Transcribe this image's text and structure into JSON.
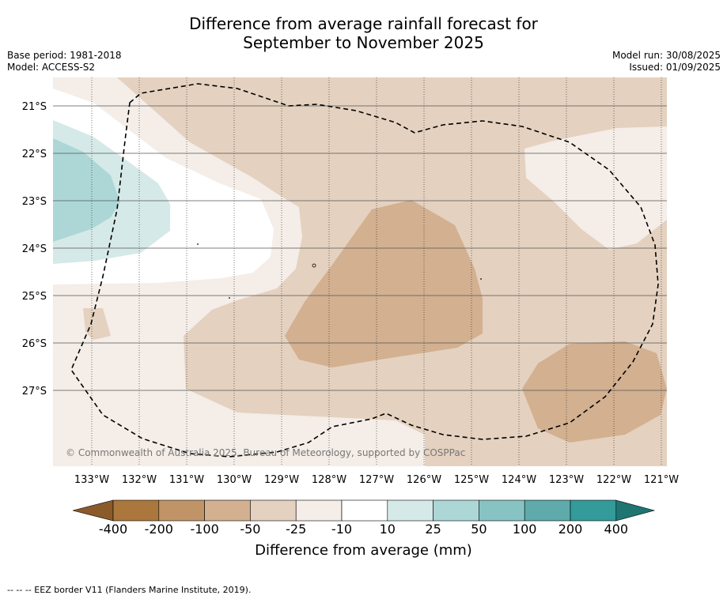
{
  "title": {
    "line1": "Difference from average rainfall forecast for",
    "line2": "September to November 2025"
  },
  "meta": {
    "base_period": "Base period: 1981-2018",
    "model": "Model: ACCESS-S2",
    "model_run": "Model run: 30/08/2025",
    "issued": "Issued: 01/09/2025"
  },
  "map": {
    "lat_labels": [
      "21°S",
      "22°S",
      "23°S",
      "24°S",
      "25°S",
      "26°S",
      "27°S"
    ],
    "lon_labels": [
      "133°W",
      "132°W",
      "131°W",
      "130°W",
      "129°W",
      "128°W",
      "127°W",
      "126°W",
      "125°W",
      "124°W",
      "123°W",
      "122°W",
      "121°W"
    ],
    "copyright": "© Commonwealth of Australia 2025, Bureau of Meteorology, supported by COSPPac"
  },
  "colorbar": {
    "tick_labels": [
      "-400",
      "-200",
      "-100",
      "-50",
      "-25",
      "-10",
      "10",
      "25",
      "50",
      "100",
      "200",
      "400"
    ],
    "colors": [
      "#8b5a2b",
      "#ac773d",
      "#c19468",
      "#d2b090",
      "#e4d1bf",
      "#f4ede8",
      "#ffffff",
      "#d5e9e8",
      "#acd7d6",
      "#88c3c3",
      "#5fabab",
      "#339b99",
      "#1e7572"
    ],
    "label": "Difference from average (mm)"
  },
  "legend_note": "--  --  -- EEZ border V11 (Flanders Marine Institute, 2019)."
}
